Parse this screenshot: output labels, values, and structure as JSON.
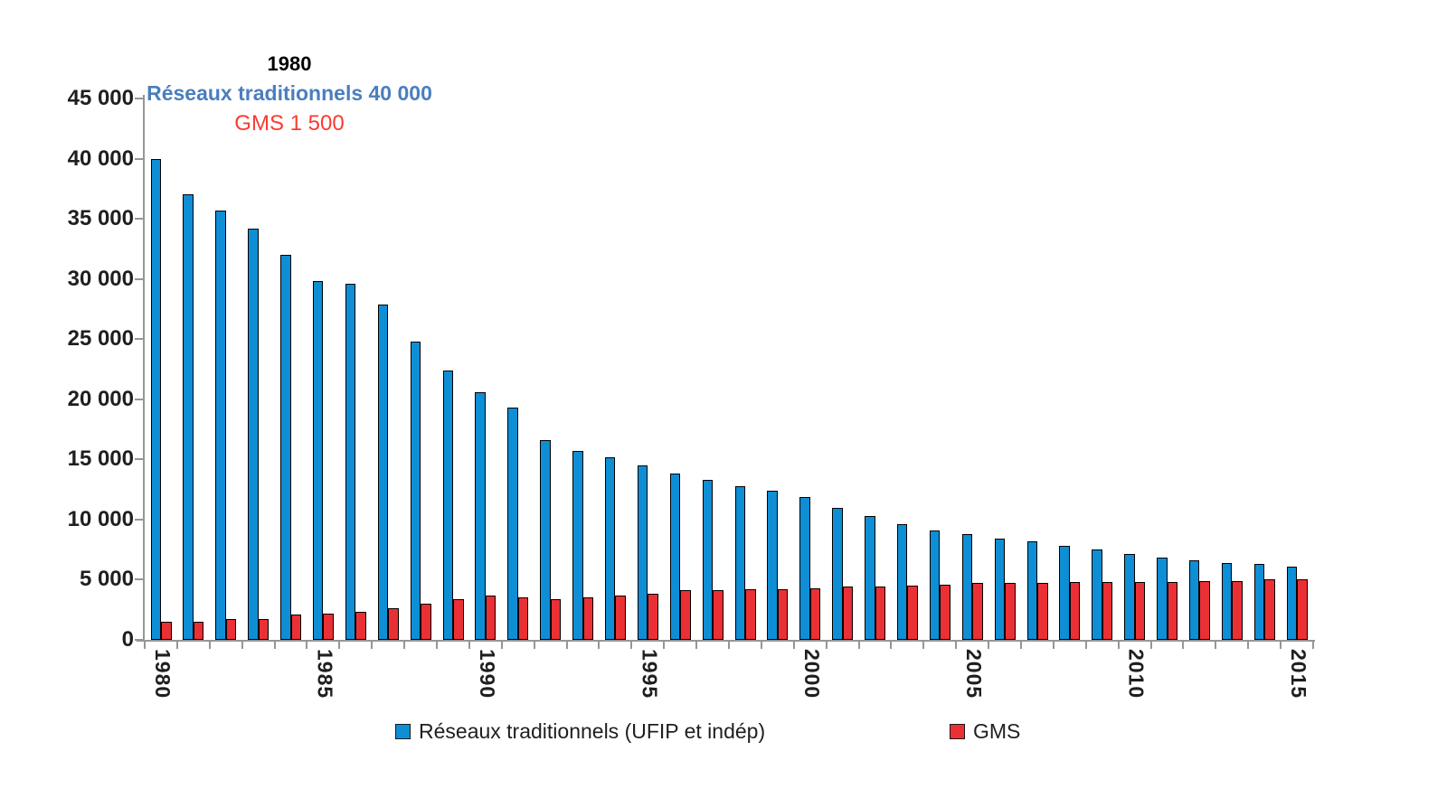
{
  "chart_data": {
    "type": "bar",
    "title": "",
    "categories": [
      1980,
      1981,
      1982,
      1983,
      1984,
      1985,
      1986,
      1987,
      1988,
      1989,
      1990,
      1991,
      1992,
      1993,
      1994,
      1995,
      1996,
      1997,
      1998,
      1999,
      2000,
      2001,
      2002,
      2003,
      2004,
      2005,
      2006,
      2007,
      2008,
      2009,
      2010,
      2011,
      2012,
      2013,
      2014,
      2015
    ],
    "series": [
      {
        "name": "Réseaux traditionnels (UFIP et indép)",
        "color": "#0e8ed5",
        "values": [
          40000,
          37000,
          35700,
          34200,
          32000,
          29800,
          29600,
          27900,
          24800,
          22400,
          20600,
          19300,
          16600,
          15700,
          15200,
          14500,
          13800,
          13300,
          12800,
          12400,
          11900,
          11000,
          10300,
          9600,
          9100,
          8800,
          8400,
          8200,
          7800,
          7500,
          7100,
          6800,
          6600,
          6400,
          6300,
          6100
        ]
      },
      {
        "name": "GMS",
        "color": "#ea3034",
        "values": [
          1500,
          1500,
          1700,
          1700,
          2100,
          2200,
          2300,
          2600,
          3000,
          3400,
          3700,
          3500,
          3400,
          3500,
          3700,
          3800,
          4100,
          4100,
          4200,
          4200,
          4300,
          4400,
          4400,
          4500,
          4600,
          4700,
          4700,
          4700,
          4800,
          4800,
          4800,
          4800,
          4900,
          4900,
          5000,
          5000
        ]
      }
    ],
    "ylim": [
      0,
      45000
    ],
    "y_ticks": [
      0,
      5000,
      10000,
      15000,
      20000,
      25000,
      30000,
      35000,
      40000,
      45000
    ],
    "y_tick_labels": [
      "0",
      "5 000",
      "10 000",
      "15 000",
      "20 000",
      "25 000",
      "30 000",
      "35 000",
      "40 000",
      "45 000"
    ],
    "x_tick_labels": [
      "1980",
      "1985",
      "1990",
      "1995",
      "2000",
      "2005",
      "2010",
      "2015"
    ],
    "grid": false,
    "legend_position": "bottom",
    "annotation": {
      "year": "1980",
      "blue_line": "Réseaux traditionnels 40 000",
      "red_line": "GMS 1 500"
    }
  },
  "colors": {
    "axis": "#969696",
    "annotation_blue": "#4a7ebe",
    "annotation_red": "#fa3b31",
    "text": "#1f1f1f"
  }
}
